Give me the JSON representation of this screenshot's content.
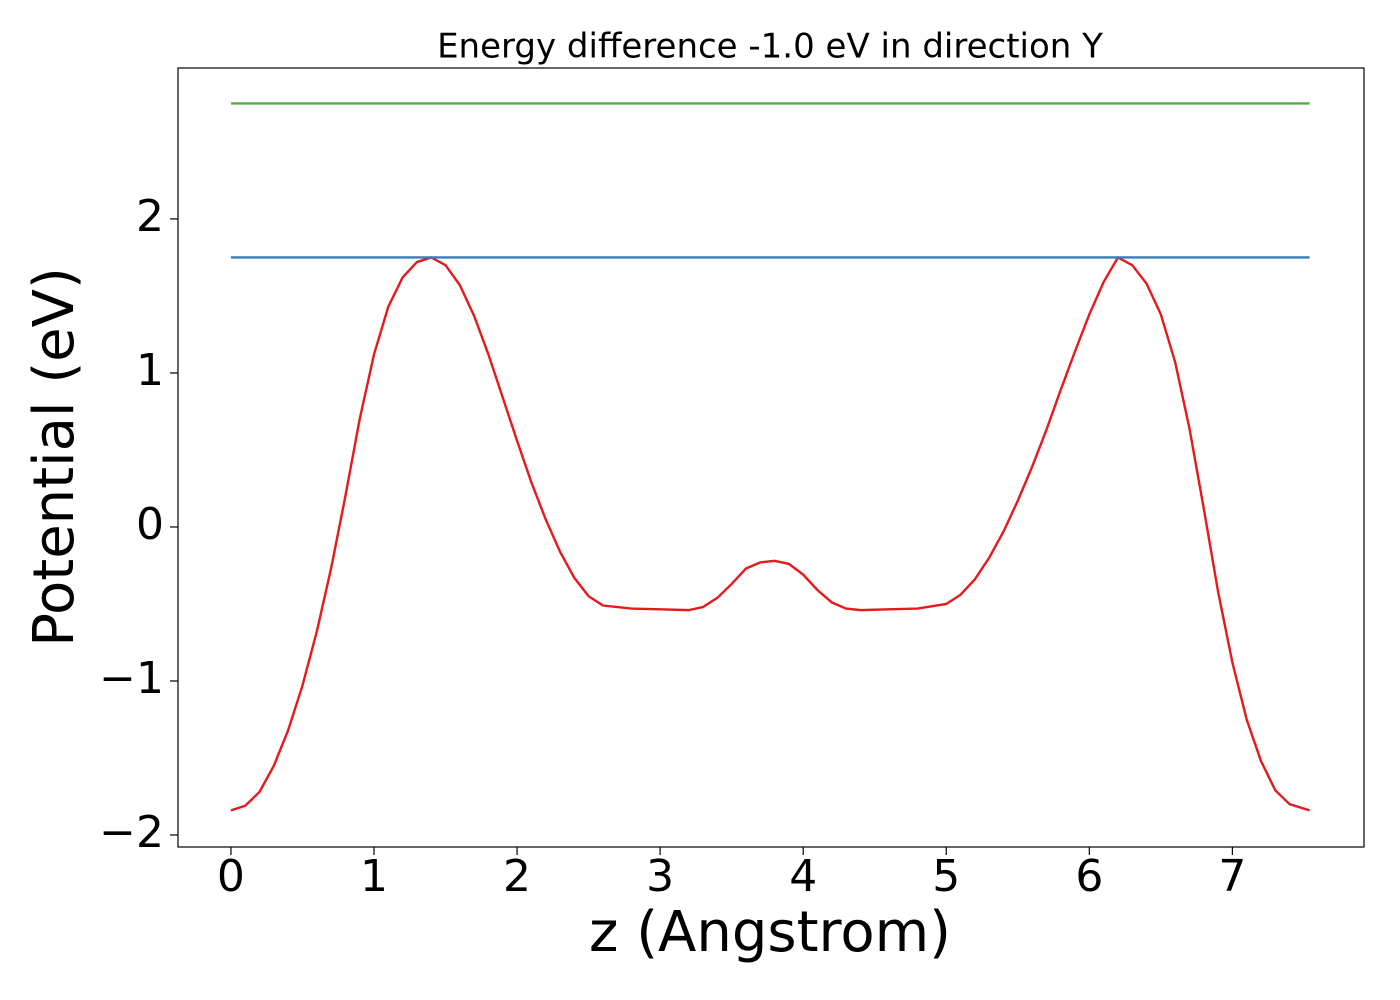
{
  "chart_data": {
    "type": "line",
    "title": "Energy difference -1.0 eV in direction Y",
    "xlabel": "z (Angstrom)",
    "ylabel": "Potential (eV)",
    "xlim": [
      -0.37,
      7.92
    ],
    "ylim": [
      -2.078,
      2.98
    ],
    "xticks": [
      0,
      1,
      2,
      3,
      4,
      5,
      6,
      7
    ],
    "yticks": [
      {
        "value": -2,
        "label": "−2"
      },
      {
        "value": -1,
        "label": "−1"
      },
      0,
      1,
      2
    ],
    "grid": false,
    "series": [
      {
        "color": "#e41a1c",
        "x": [
          0,
          0.1,
          0.2,
          0.3,
          0.4,
          0.5,
          0.6,
          0.7,
          0.8,
          0.9,
          1.0,
          1.1,
          1.2,
          1.3,
          1.4,
          1.5,
          1.6,
          1.7,
          1.8,
          1.9,
          2.0,
          2.1,
          2.2,
          2.3,
          2.4,
          2.5,
          2.6,
          2.8,
          3.0,
          3.2,
          3.3,
          3.4,
          3.5,
          3.6,
          3.7,
          3.8,
          3.9,
          4.0,
          4.1,
          4.2,
          4.3,
          4.4,
          4.6,
          4.8,
          5.0,
          5.1,
          5.2,
          5.3,
          5.4,
          5.5,
          5.6,
          5.7,
          5.8,
          5.9,
          6.0,
          6.1,
          6.2,
          6.3,
          6.4,
          6.5,
          6.6,
          6.7,
          6.8,
          6.9,
          7.0,
          7.1,
          7.2,
          7.3,
          7.4,
          7.54
        ],
        "values": [
          -1.84,
          -1.81,
          -1.72,
          -1.55,
          -1.32,
          -1.03,
          -0.68,
          -0.27,
          0.2,
          0.7,
          1.12,
          1.43,
          1.62,
          1.72,
          1.75,
          1.7,
          1.57,
          1.37,
          1.12,
          0.84,
          0.56,
          0.29,
          0.05,
          -0.16,
          -0.33,
          -0.45,
          -0.51,
          -0.53,
          -0.535,
          -0.54,
          -0.52,
          -0.46,
          -0.37,
          -0.27,
          -0.23,
          -0.22,
          -0.24,
          -0.31,
          -0.41,
          -0.49,
          -0.53,
          -0.54,
          -0.535,
          -0.53,
          -0.5,
          -0.44,
          -0.34,
          -0.2,
          -0.03,
          0.17,
          0.39,
          0.63,
          0.89,
          1.14,
          1.38,
          1.59,
          1.75,
          1.7,
          1.58,
          1.38,
          1.07,
          0.64,
          0.12,
          -0.42,
          -0.88,
          -1.25,
          -1.52,
          -1.71,
          -1.8,
          -1.84
        ]
      },
      {
        "color": "#377eb8",
        "x": [
          0,
          7.54
        ],
        "values": [
          1.75,
          1.75
        ]
      },
      {
        "color": "#4daf4a",
        "x": [
          0,
          7.54
        ],
        "values": [
          2.75,
          2.75
        ]
      }
    ]
  }
}
